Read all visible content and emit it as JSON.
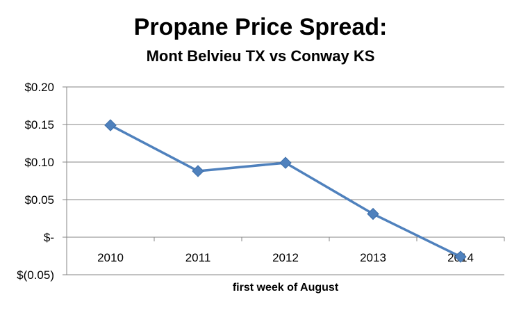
{
  "chart_data": {
    "type": "line",
    "title": "Propane Price Spread:",
    "subtitle": "Mont Belvieu TX vs Conway KS",
    "xlabel": "first week of August",
    "ylabel": "",
    "categories": [
      "2010",
      "2011",
      "2012",
      "2013",
      "2014"
    ],
    "series": [
      {
        "values": [
          0.149,
          0.088,
          0.099,
          0.031,
          -0.026
        ]
      }
    ],
    "ylim": [
      -0.05,
      0.2
    ],
    "y_ticks": [
      0.2,
      0.15,
      0.1,
      0.05,
      0,
      -0.05
    ],
    "y_tick_labels": [
      "$0.20",
      "$0.15",
      "$0.10",
      "$0.05",
      "$-",
      "$(0.05)"
    ],
    "grid": true,
    "legend": "none",
    "colors": {
      "line": "#4f81bd",
      "marker": "#4f81bd",
      "grid": "#868686",
      "axis": "#868686"
    }
  }
}
